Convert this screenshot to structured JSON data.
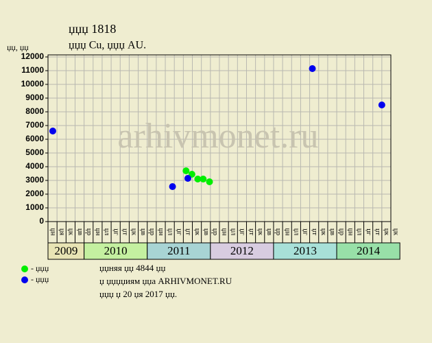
{
  "chart_data": {
    "type": "scatter",
    "title": "џџџ 1818",
    "subtitle": "џџџ Cu, џџџ AU.",
    "y_label": "џџ, џџ",
    "watermark": "arhivmonet.ru",
    "xlim": [
      0,
      38
    ],
    "ylim": [
      0,
      12000
    ],
    "yticks": [
      0,
      1000,
      2000,
      3000,
      4000,
      5000,
      6000,
      7000,
      8000,
      9000,
      10000,
      11000,
      12000
    ],
    "grid": true,
    "groups": [
      {
        "label": "2009",
        "color": "#e8e4b4",
        "categories": [
          "џн",
          "џя",
          "џк",
          "џв"
        ]
      },
      {
        "label": "2010",
        "color": "#c4f0a0",
        "categories": [
          "џр",
          "џн",
          "џл",
          "џг",
          "џт",
          "џк",
          "џв"
        ]
      },
      {
        "label": "2011",
        "color": "#a8d4d4",
        "categories": [
          "џр",
          "џн",
          "џл",
          "џг",
          "џт",
          "џк",
          "џв"
        ]
      },
      {
        "label": "2012",
        "color": "#d8cce0",
        "categories": [
          "џр",
          "џн",
          "џл",
          "џг",
          "џт",
          "џк",
          "џв"
        ]
      },
      {
        "label": "2013",
        "color": "#a8e0d8",
        "categories": [
          "џр",
          "џн",
          "џл",
          "џг",
          "џт",
          "џк",
          "џв"
        ]
      },
      {
        "label": "2014",
        "color": "#98e0a8",
        "categories": [
          "џр",
          "џн",
          "џл",
          "џг",
          "џт",
          "џк",
          "џк"
        ]
      }
    ],
    "series": [
      {
        "name": "- џџџ",
        "color": "#00ee00",
        "x": [
          15.3,
          15.95,
          16.6,
          17.2,
          17.9
        ],
        "values": [
          3700,
          3450,
          3100,
          3100,
          2900
        ]
      },
      {
        "name": "- џџџ",
        "color": "#0000ee",
        "x": [
          0.53,
          13.8,
          15.5,
          29.3,
          37.0
        ],
        "values": [
          6600,
          2550,
          3150,
          11150,
          8500
        ]
      }
    ],
    "footer": [
      "џџняя џџ 4844 џџ",
      "џ џџџџиям џџа ARHIVMONET.RU",
      "џџџ џ 20 џя 2017 џџ."
    ]
  }
}
